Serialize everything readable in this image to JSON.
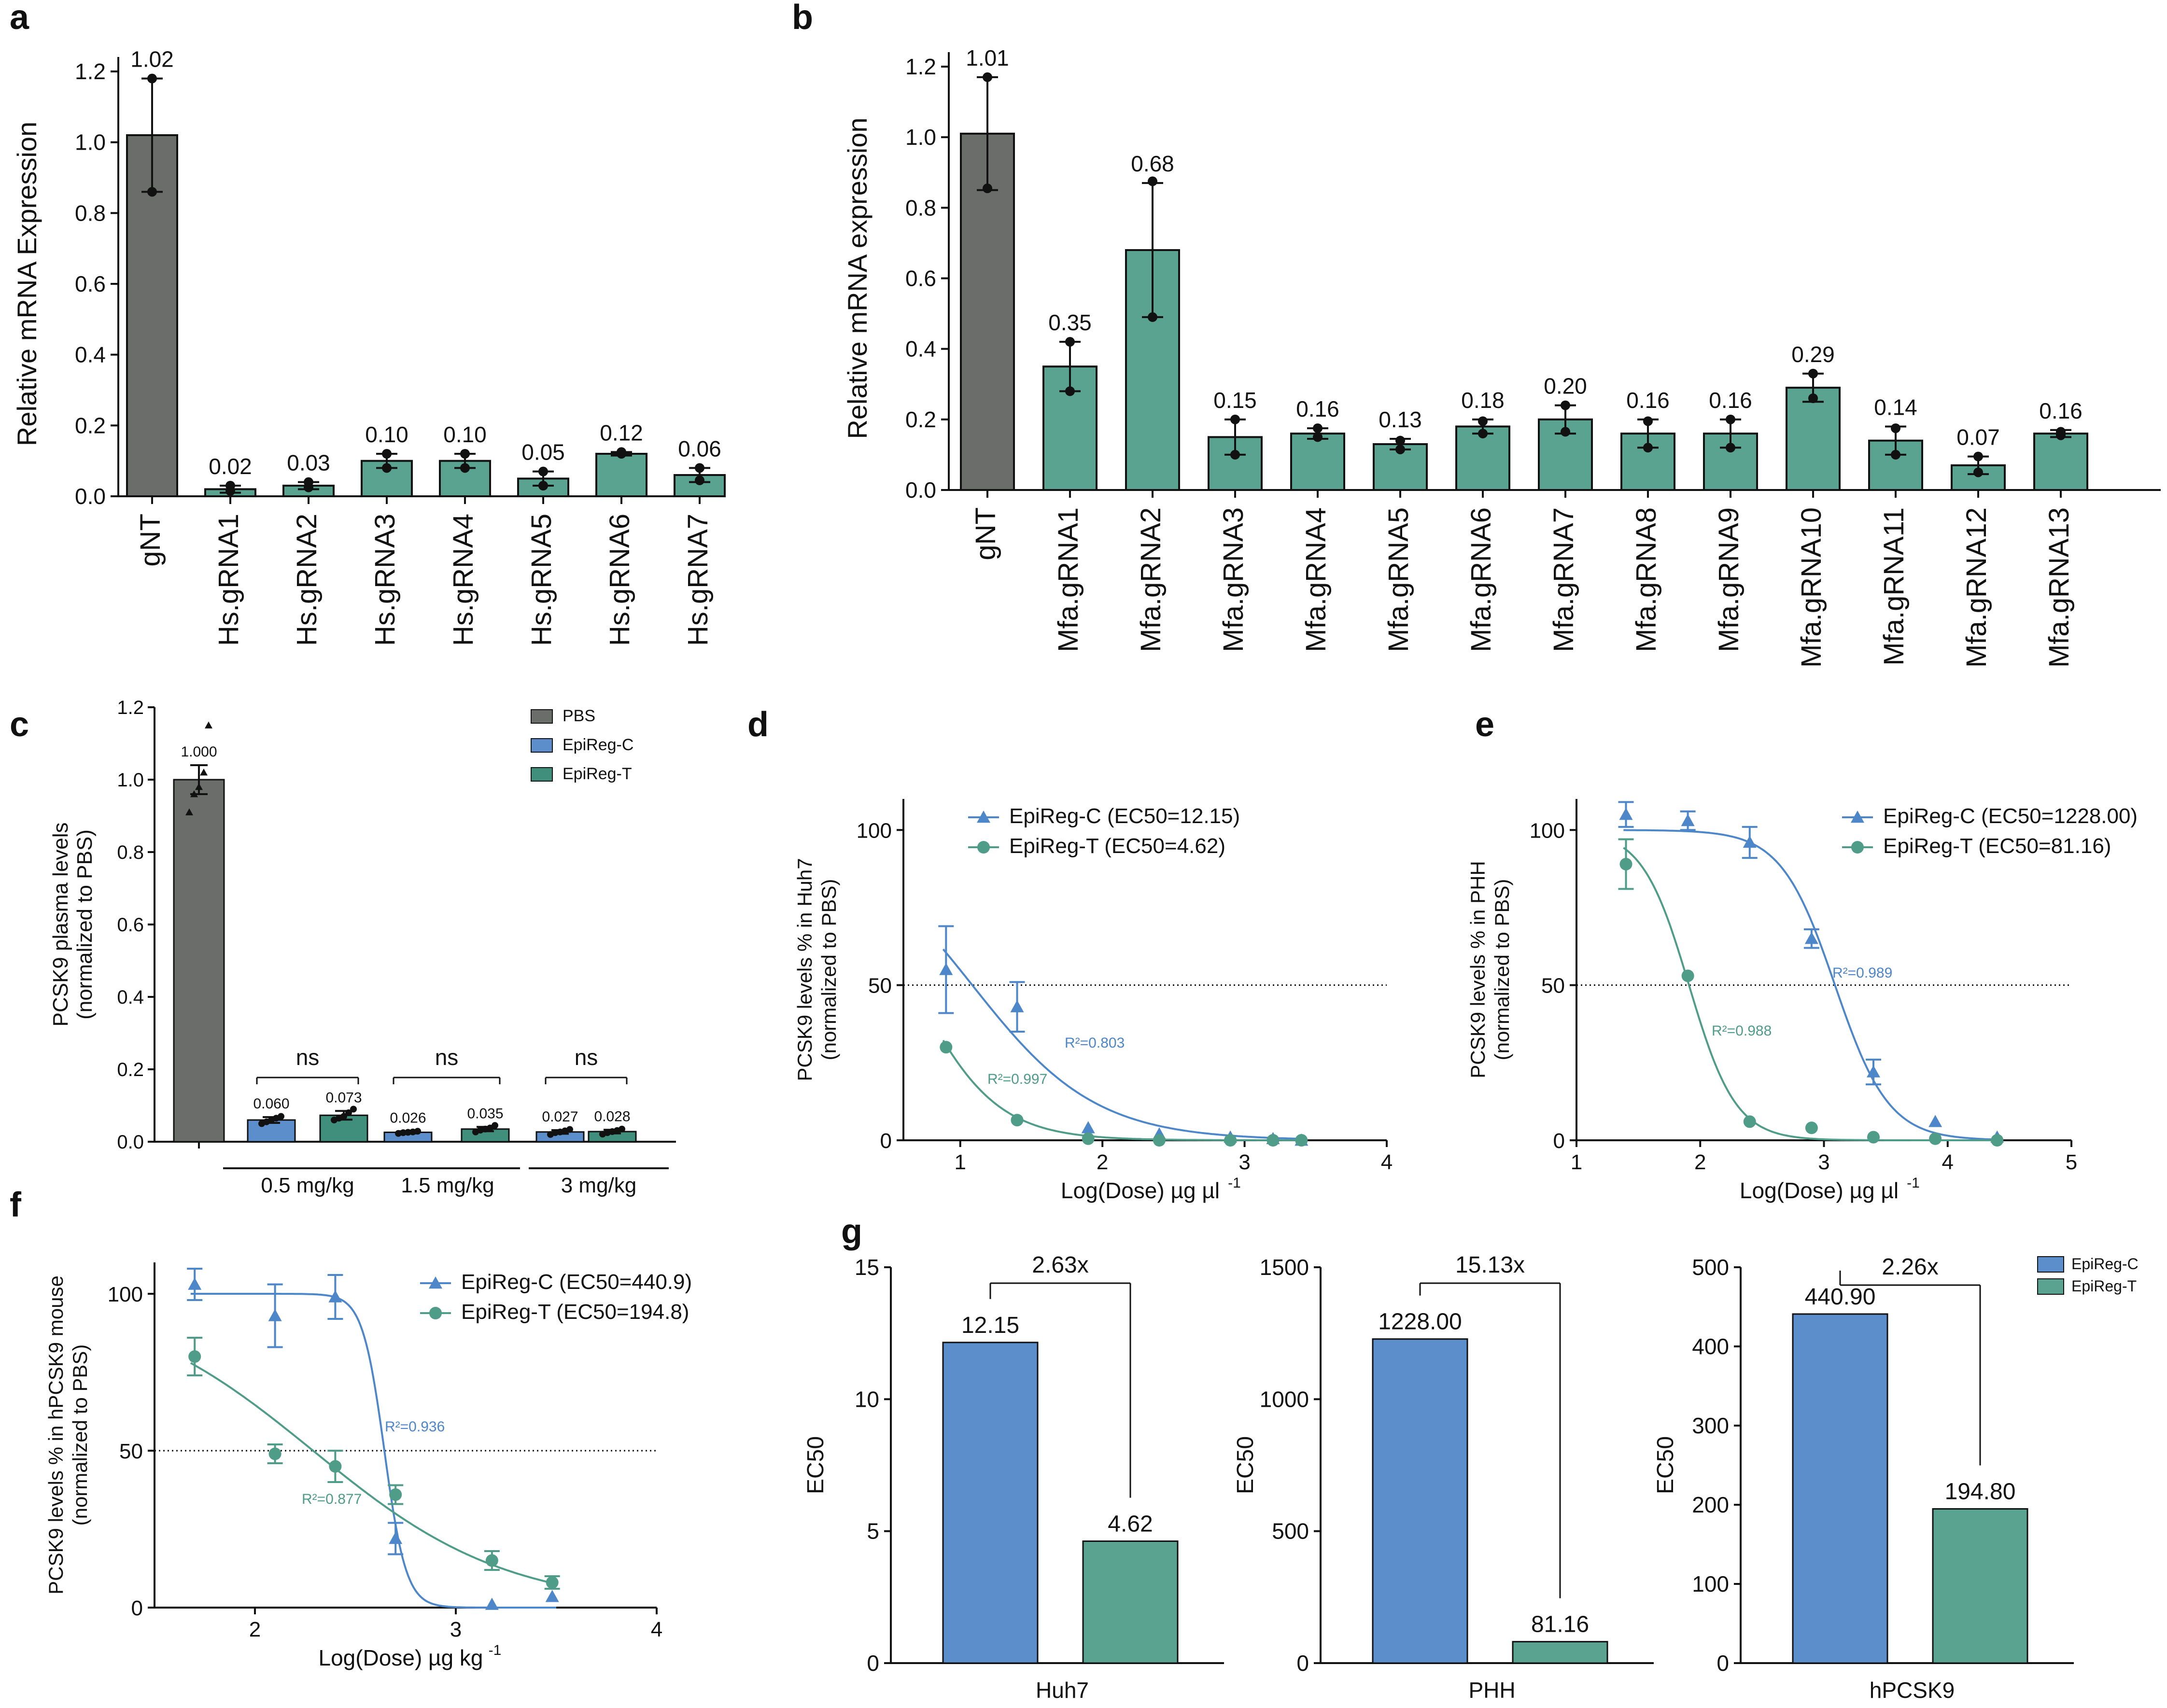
{
  "colors": {
    "gray": "#6b6d6b",
    "teal": "#5aa390",
    "blue": "#5b8ecb",
    "darkblue": "#4a7fc4",
    "darkteal": "#3f8f7c",
    "curveblue": "#4d86c9",
    "curveteal": "#4f9c88"
  },
  "chart_data": [
    {
      "panel": "a",
      "type": "bar",
      "ylabel": "Relative mRNA Expression",
      "ylim": [
        0,
        1.2
      ],
      "yticks": [
        "0.0",
        "0.2",
        "0.4",
        "0.6",
        "0.8",
        "1.0",
        "1.2"
      ],
      "categories": [
        "gNT",
        "Hs.gRNA1",
        "Hs.gRNA2",
        "Hs.gRNA3",
        "Hs.gRNA4",
        "Hs.gRNA5",
        "Hs.gRNA6",
        "Hs.gRNA7"
      ],
      "values": [
        1.02,
        0.02,
        0.03,
        0.1,
        0.1,
        0.05,
        0.12,
        0.06
      ],
      "value_labels": [
        "1.02",
        "0.02",
        "0.03",
        "0.10",
        "0.10",
        "0.05",
        "0.12",
        "0.06"
      ],
      "errors": [
        0.16,
        0.01,
        0.01,
        0.02,
        0.02,
        0.02,
        0.005,
        0.02
      ],
      "points": [
        [
          0.86,
          1.18
        ],
        [
          0.015,
          0.03
        ],
        [
          0.025,
          0.04
        ],
        [
          0.08,
          0.12
        ],
        [
          0.08,
          0.12
        ],
        [
          0.03,
          0.07
        ],
        [
          0.12,
          0.125
        ],
        [
          0.045,
          0.08
        ]
      ]
    },
    {
      "panel": "b",
      "type": "bar",
      "ylabel": "Relative mRNA expression",
      "ylim": [
        0,
        1.2
      ],
      "yticks": [
        "0.0",
        "0.2",
        "0.4",
        "0.6",
        "0.8",
        "1.0",
        "1.2"
      ],
      "categories": [
        "gNT",
        "Mfa.gRNA1",
        "Mfa.gRNA2",
        "Mfa.gRNA3",
        "Mfa.gRNA4",
        "Mfa.gRNA5",
        "Mfa.gRNA6",
        "Mfa.gRNA7",
        "Mfa.gRNA8",
        "Mfa.gRNA9",
        "Mfa.gRNA10",
        "Mfa.gRNA11",
        "Mfa.gRNA12",
        "Mfa.gRNA13"
      ],
      "values": [
        1.01,
        0.35,
        0.68,
        0.15,
        0.16,
        0.13,
        0.18,
        0.2,
        0.16,
        0.16,
        0.29,
        0.14,
        0.07,
        0.16
      ],
      "value_labels": [
        "1.01",
        "0.35",
        "0.68",
        "0.15",
        "0.16",
        "0.13",
        "0.18",
        "0.20",
        "0.16",
        "0.16",
        "0.29",
        "0.14",
        "0.07",
        "0.16"
      ],
      "errors": [
        0.16,
        0.07,
        0.19,
        0.05,
        0.015,
        0.015,
        0.02,
        0.04,
        0.04,
        0.04,
        0.04,
        0.04,
        0.025,
        0.01
      ],
      "points": [
        [
          0.855,
          1.17
        ],
        [
          0.28,
          0.42
        ],
        [
          0.49,
          0.875
        ],
        [
          0.1,
          0.2
        ],
        [
          0.15,
          0.175
        ],
        [
          0.115,
          0.14
        ],
        [
          0.16,
          0.195
        ],
        [
          0.165,
          0.24
        ],
        [
          0.12,
          0.195
        ],
        [
          0.12,
          0.2
        ],
        [
          0.26,
          0.33
        ],
        [
          0.1,
          0.175
        ],
        [
          0.05,
          0.095
        ],
        [
          0.155,
          0.165
        ]
      ]
    },
    {
      "panel": "c",
      "type": "bar",
      "ylabel": "PCSK9 plasma levels",
      "ylabel2": "(normalized to PBS)",
      "ylim": [
        0,
        1.2
      ],
      "yticks": [
        "0.0",
        "0.2",
        "0.4",
        "0.6",
        "0.8",
        "1.0",
        "1.2"
      ],
      "legend": [
        "PBS",
        "EpiReg-C",
        "EpiReg-T"
      ],
      "groups": [
        "0.5 mg/kg",
        "1.5 mg/kg",
        "3 mg/kg"
      ],
      "bars": [
        {
          "series": "PBS",
          "value": 1.0,
          "label": "1.000",
          "err": 0.04,
          "points": [
            0.91,
            0.96,
            0.98,
            1.02,
            1.15
          ]
        },
        {
          "series": "EpiReg-C",
          "value": 0.06,
          "label": "0.060",
          "err": 0.008,
          "points": [
            0.05,
            0.055,
            0.06,
            0.065,
            0.07
          ]
        },
        {
          "series": "EpiReg-T",
          "value": 0.073,
          "label": "0.073",
          "err": 0.012,
          "points": [
            0.06,
            0.065,
            0.07,
            0.08,
            0.09
          ]
        },
        {
          "series": "EpiReg-C",
          "value": 0.026,
          "label": "0.026",
          "err": 0.003,
          "points": [
            0.023,
            0.025,
            0.026,
            0.027,
            0.029
          ]
        },
        {
          "series": "EpiReg-T",
          "value": 0.035,
          "label": "0.035",
          "err": 0.006,
          "points": [
            0.027,
            0.032,
            0.035,
            0.038,
            0.045
          ]
        },
        {
          "series": "EpiReg-C",
          "value": 0.027,
          "label": "0.027",
          "err": 0.005,
          "points": [
            0.02,
            0.025,
            0.027,
            0.03,
            0.034
          ]
        },
        {
          "series": "EpiReg-T",
          "value": 0.028,
          "label": "0.028",
          "err": 0.005,
          "points": [
            0.021,
            0.025,
            0.028,
            0.031,
            0.035
          ]
        }
      ],
      "sig": [
        "ns",
        "ns",
        "ns"
      ]
    },
    {
      "panel": "d",
      "type": "line",
      "ylabel": "PCSK9 levels % in Huh7",
      "ylabel2": "(normalized to PBS)",
      "xlabel": "Log(Dose)  µg µl",
      "xlabel_sup": "-1",
      "xlim": [
        0.6,
        4
      ],
      "ylim": [
        0,
        110
      ],
      "xticks": [
        "1",
        "2",
        "3",
        "4"
      ],
      "yticks": [
        "0",
        "50",
        "100"
      ],
      "series": [
        {
          "name": "EpiReg-C (EC50=12.15)",
          "r2": "R²=0.803",
          "x": [
            0.9,
            1.4,
            1.9,
            2.4,
            2.9,
            3.2,
            3.4
          ],
          "y": [
            55,
            43,
            4,
            2,
            1,
            0.5,
            0
          ],
          "err": [
            14,
            8,
            0,
            0,
            0,
            0,
            0
          ],
          "logEC50": 1.0846,
          "hill": -1.0
        },
        {
          "name": "EpiReg-T (EC50=4.62)",
          "r2": "R²=0.997",
          "x": [
            0.9,
            1.4,
            1.9,
            2.4,
            2.9,
            3.2,
            3.4
          ],
          "y": [
            30,
            6.5,
            0.5,
            0,
            0,
            0,
            0
          ],
          "err": [
            0,
            0,
            0,
            0,
            0,
            0,
            0
          ],
          "logEC50": 0.6646,
          "hill": -1.5
        }
      ]
    },
    {
      "panel": "e",
      "type": "line",
      "ylabel": "PCSK9 levels %  in PHH",
      "ylabel2": "(normalized to PBS)",
      "xlabel": "Log(Dose)  µg µl",
      "xlabel_sup": "-1",
      "xlim": [
        1,
        5
      ],
      "ylim": [
        0,
        110
      ],
      "xticks": [
        "1",
        "2",
        "3",
        "4",
        "5"
      ],
      "yticks": [
        "0",
        "50",
        "100"
      ],
      "series": [
        {
          "name": "EpiReg-C (EC50=1228.00)",
          "r2": "R²=0.989",
          "x": [
            1.4,
            1.9,
            2.4,
            2.9,
            3.4,
            3.9,
            4.4
          ],
          "y": [
            105,
            103,
            96,
            65,
            22,
            6,
            1
          ],
          "err": [
            4,
            3,
            5,
            3,
            4,
            0,
            0
          ],
          "logEC50": 3.0892,
          "hill": -2.0
        },
        {
          "name": "EpiReg-T (EC50=81.16)",
          "r2": "R²=0.988",
          "x": [
            1.4,
            1.9,
            2.4,
            2.9,
            3.4,
            3.9,
            4.4
          ],
          "y": [
            89,
            53,
            6,
            4,
            1,
            0.5,
            0
          ],
          "err": [
            8,
            0,
            0,
            0,
            0,
            0,
            0
          ],
          "logEC50": 1.9094,
          "hill": -2.3
        }
      ]
    },
    {
      "panel": "f",
      "type": "line",
      "ylabel": "PCSK9 levels % in hPCSK9 mouse",
      "ylabel2": "(normalized to PBS)",
      "xlabel": "Log(Dose)  µg kg",
      "xlabel_sup": "-1",
      "xlim": [
        1.5,
        4
      ],
      "ylim": [
        0,
        110
      ],
      "xticks": [
        "2",
        "3",
        "4"
      ],
      "yticks": [
        "0",
        "50",
        "100"
      ],
      "series": [
        {
          "name": "EpiReg-C (EC50=440.9)",
          "r2": "R²=0.936",
          "x": [
            1.7,
            2.1,
            2.4,
            2.7,
            3.18,
            3.48
          ],
          "y": [
            103,
            93,
            99,
            22,
            1,
            3.5
          ],
          "err": [
            5,
            10,
            7,
            5,
            0,
            0
          ],
          "logEC50": 2.6444,
          "hill": -8.0
        },
        {
          "name": "EpiReg-T (EC50=194.8)",
          "r2": "R²=0.877",
          "x": [
            1.7,
            2.1,
            2.4,
            2.7,
            3.18,
            3.48
          ],
          "y": [
            80,
            49,
            45,
            36,
            15,
            8
          ],
          "err": [
            6,
            3,
            5,
            3,
            3,
            2
          ],
          "logEC50": 2.2896,
          "hill": -0.9
        }
      ]
    },
    {
      "panel": "g",
      "type": "bar",
      "ylabel": "EC50",
      "legend": [
        "EpiReg-C",
        "EpiReg-T"
      ],
      "charts": [
        {
          "category": "Huh7",
          "ylim": [
            0,
            15
          ],
          "yticks": [
            "0",
            "5",
            "10",
            "15"
          ],
          "values": [
            12.15,
            4.62
          ],
          "value_labels": [
            "12.15",
            "4.62"
          ],
          "fold": "2.63x"
        },
        {
          "category": "PHH",
          "ylim": [
            0,
            1500
          ],
          "yticks": [
            "0",
            "500",
            "1000",
            "1500"
          ],
          "values": [
            1228.0,
            81.16
          ],
          "value_labels": [
            "1228.00",
            "81.16"
          ],
          "fold": "15.13x"
        },
        {
          "category": "hPCSK9",
          "ylim": [
            0,
            500
          ],
          "yticks": [
            "0",
            "100",
            "200",
            "300",
            "400",
            "500"
          ],
          "values": [
            440.9,
            194.8
          ],
          "value_labels": [
            "440.90",
            "194.80"
          ],
          "fold": "2.26x"
        }
      ]
    }
  ],
  "panel_labels": [
    "a",
    "b",
    "c",
    "d",
    "e",
    "f",
    "g"
  ]
}
